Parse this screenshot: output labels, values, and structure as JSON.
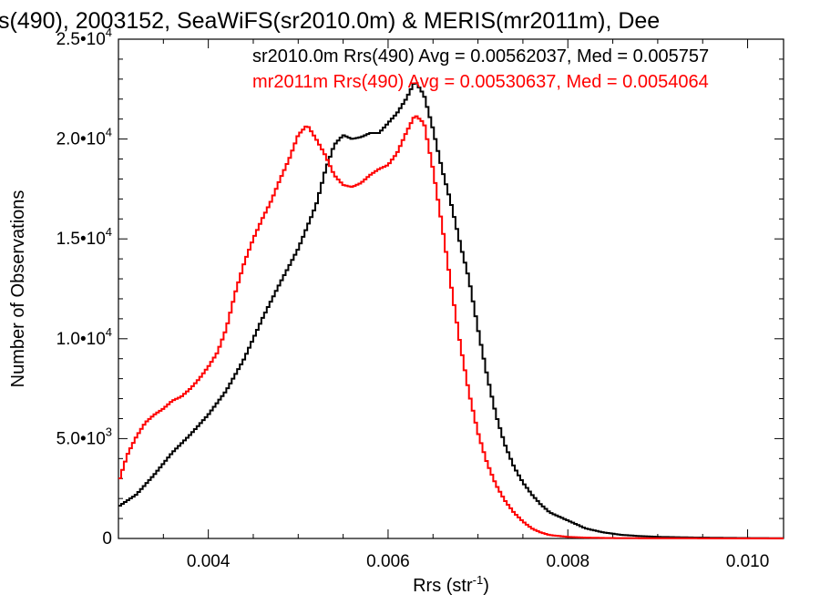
{
  "chart_data": {
    "type": "line",
    "title": "s(490), 2003152, SeaWiFS(sr2010.0m) & MERIS(mr2011m), Dee",
    "xlabel": "Rrs (str",
    "xlabel_sup": "-1",
    "xlabel_tail": ")",
    "ylabel": "Number of Observations",
    "xlim": [
      0.003,
      0.0104
    ],
    "ylim": [
      0,
      25000
    ],
    "xticks": [
      {
        "value": 0.004,
        "label": "0.004"
      },
      {
        "value": 0.006,
        "label": "0.006"
      },
      {
        "value": 0.008,
        "label": "0.008"
      },
      {
        "value": 0.01,
        "label": "0.010"
      }
    ],
    "yticks": [
      {
        "value": 0,
        "label": "0",
        "sup": ""
      },
      {
        "value": 5000,
        "label": "5.0•10",
        "sup": "3"
      },
      {
        "value": 10000,
        "label": "1.0•10",
        "sup": "4"
      },
      {
        "value": 15000,
        "label": "1.5•10",
        "sup": "4"
      },
      {
        "value": 20000,
        "label": "2.0•10",
        "sup": "4"
      },
      {
        "value": 25000,
        "label": "2.5•10",
        "sup": "4"
      }
    ],
    "annotations": [
      {
        "text": "sr2010.0m Rrs(490) Avg = 0.00562037, Med = 0.005757",
        "color": "#000000"
      },
      {
        "text": "mr2011m Rrs(490) Avg = 0.00530637, Med = 0.0054064",
        "color": "#ff0000"
      }
    ],
    "series": [
      {
        "color": "#000000",
        "x": [
          0.003,
          0.0032,
          0.0034,
          0.0036,
          0.0038,
          0.004,
          0.0042,
          0.0044,
          0.0046,
          0.0048,
          0.005,
          0.0052,
          0.0053,
          0.0054,
          0.0055,
          0.0056,
          0.0057,
          0.0058,
          0.0059,
          0.006,
          0.0061,
          0.0062,
          0.0063,
          0.0064,
          0.0065,
          0.0066,
          0.0067,
          0.0068,
          0.0069,
          0.007,
          0.0071,
          0.0072,
          0.0073,
          0.0074,
          0.0075,
          0.0076,
          0.0077,
          0.0078,
          0.008,
          0.0082,
          0.0084,
          0.0086,
          0.0088,
          0.009,
          0.0095,
          0.01,
          0.0104
        ],
        "y": [
          1600,
          2200,
          3200,
          4300,
          5200,
          6200,
          7400,
          9000,
          11000,
          12800,
          14500,
          16700,
          18400,
          19700,
          20200,
          20000,
          20100,
          20300,
          20300,
          20800,
          21300,
          22000,
          22900,
          22200,
          20500,
          18500,
          16800,
          14800,
          13000,
          10500,
          8200,
          6200,
          4700,
          3600,
          2800,
          2200,
          1700,
          1300,
          900,
          500,
          300,
          180,
          120,
          80,
          40,
          20,
          10
        ]
      },
      {
        "color": "#ff0000",
        "x": [
          0.003,
          0.0031,
          0.0032,
          0.0033,
          0.0034,
          0.0035,
          0.0036,
          0.0037,
          0.0038,
          0.0039,
          0.004,
          0.0041,
          0.0042,
          0.0043,
          0.0044,
          0.0045,
          0.0046,
          0.0047,
          0.0048,
          0.0049,
          0.005,
          0.0051,
          0.0052,
          0.0053,
          0.0054,
          0.0055,
          0.0056,
          0.0057,
          0.0058,
          0.0059,
          0.006,
          0.0061,
          0.0062,
          0.0063,
          0.0064,
          0.0065,
          0.0066,
          0.0067,
          0.0068,
          0.0069,
          0.007,
          0.0071,
          0.0072,
          0.0073,
          0.0074,
          0.0075,
          0.0076,
          0.0077,
          0.0078,
          0.008,
          0.0082,
          0.0085,
          0.009,
          0.0104
        ],
        "y": [
          2800,
          4200,
          5100,
          5800,
          6200,
          6500,
          6900,
          7100,
          7500,
          8000,
          8600,
          9300,
          10500,
          12300,
          13800,
          15000,
          16000,
          16900,
          18000,
          19000,
          20200,
          20700,
          20000,
          19200,
          18200,
          17700,
          17600,
          17800,
          18200,
          18500,
          18700,
          19300,
          20300,
          21200,
          20800,
          18500,
          15700,
          12700,
          9800,
          7300,
          5300,
          3800,
          2700,
          1900,
          1300,
          850,
          500,
          300,
          170,
          80,
          40,
          20,
          10,
          5
        ]
      }
    ]
  }
}
